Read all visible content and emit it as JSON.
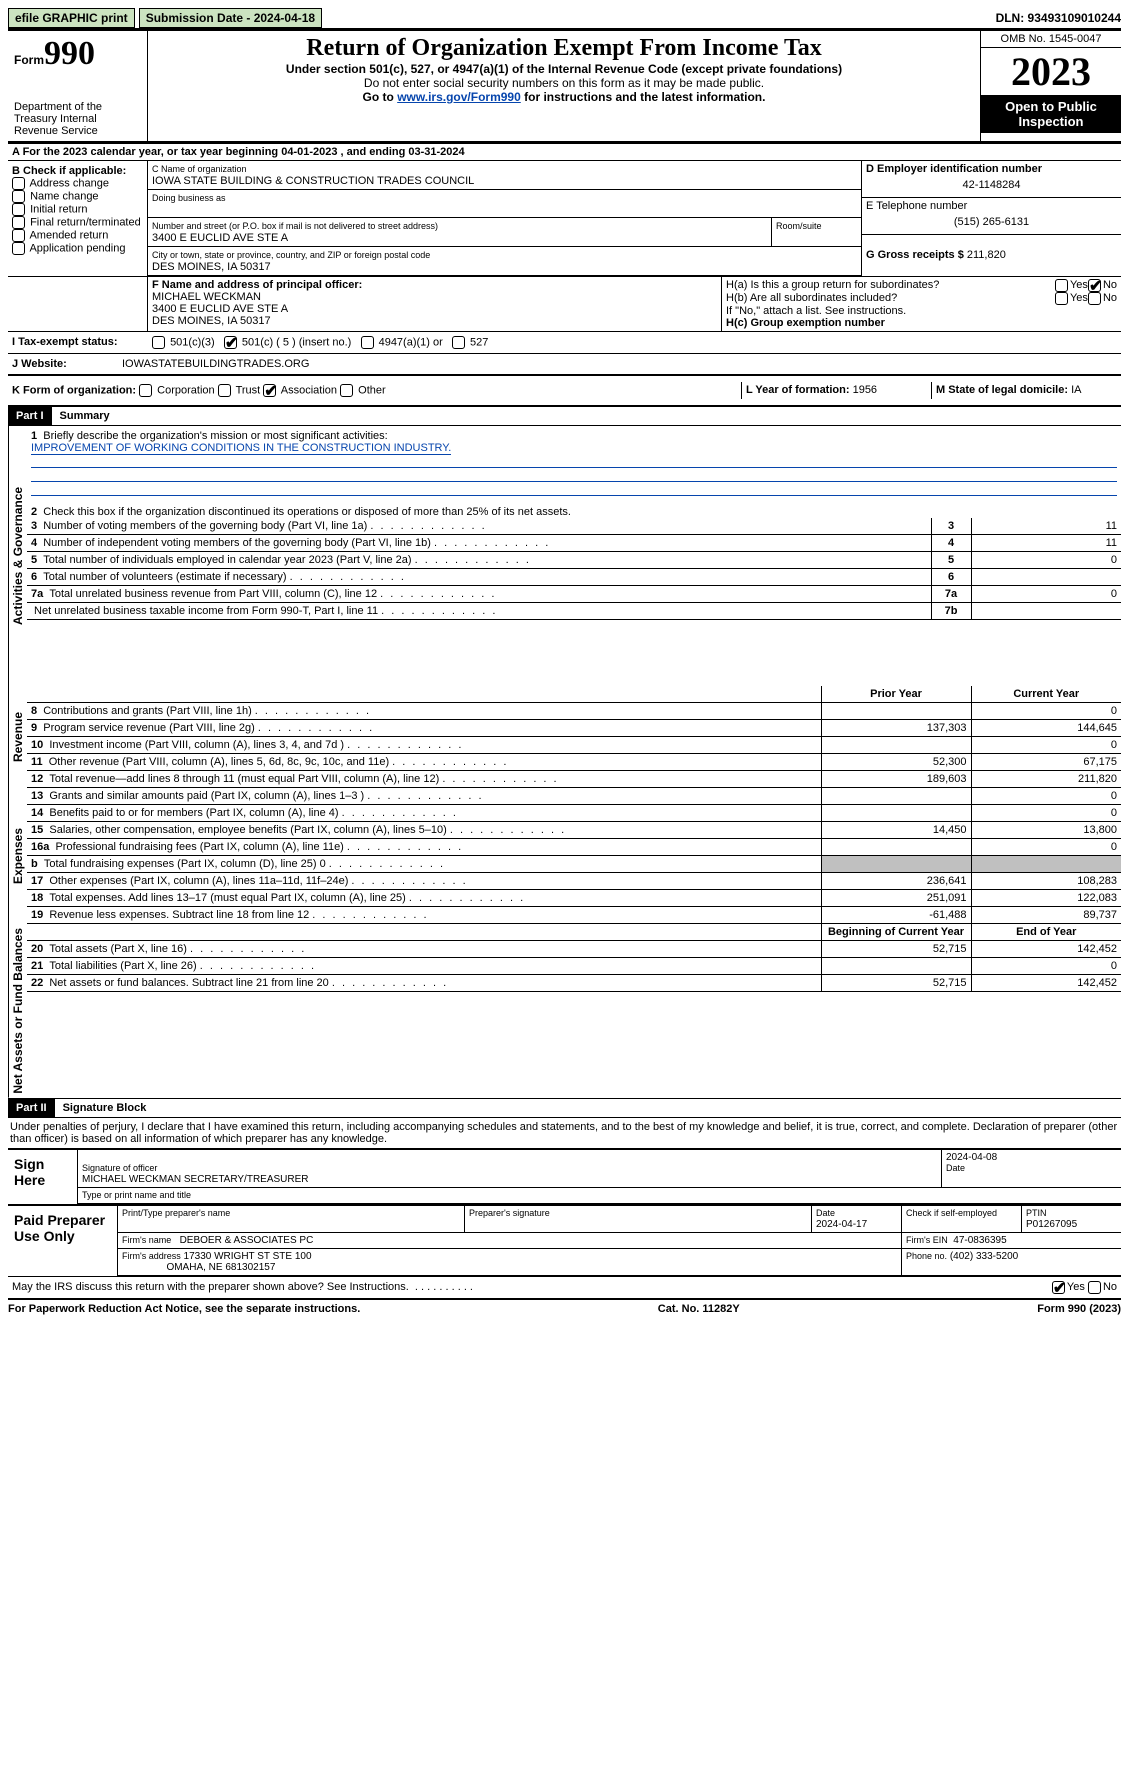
{
  "topbar": {
    "efile": "efile GRAPHIC print",
    "submission_label": "Submission Date - 2024-04-18",
    "dln": "DLN: 93493109010244"
  },
  "header": {
    "form_prefix": "Form",
    "form_no": "990",
    "title": "Return of Organization Exempt From Income Tax",
    "subtitle1": "Under section 501(c), 527, or 4947(a)(1) of the Internal Revenue Code (except private foundations)",
    "subtitle2": "Do not enter social security numbers on this form as it may be made public.",
    "subtitle3_pre": "Go to ",
    "subtitle3_link": "www.irs.gov/Form990",
    "subtitle3_post": " for instructions and the latest information.",
    "dept": "Department of the Treasury\nInternal Revenue Service",
    "omb": "OMB No. 1545-0047",
    "year": "2023",
    "open": "Open to Public Inspection"
  },
  "period": {
    "label_a": "A For the 2023 calendar year, or tax year beginning ",
    "begin": "04-01-2023",
    "mid": " , and ending ",
    "end": "03-31-2024"
  },
  "boxB": {
    "label": "B Check if applicable:",
    "items": [
      "Address change",
      "Name change",
      "Initial return",
      "Final return/terminated",
      "Amended return",
      "Application pending"
    ]
  },
  "boxC": {
    "name_label": "C Name of organization",
    "name": "IOWA STATE BUILDING & CONSTRUCTION TRADES COUNCIL",
    "dba_label": "Doing business as",
    "addr_label": "Number and street (or P.O. box if mail is not delivered to street address)",
    "room_label": "Room/suite",
    "addr": "3400 E EUCLID AVE STE A",
    "city_label": "City or town, state or province, country, and ZIP or foreign postal code",
    "city": "DES MOINES, IA  50317"
  },
  "boxD": {
    "label": "D Employer identification number",
    "value": "42-1148284"
  },
  "boxE": {
    "label": "E Telephone number",
    "value": "(515) 265-6131"
  },
  "boxG": {
    "label": "G Gross receipts $",
    "value": "211,820"
  },
  "boxF": {
    "label": "F  Name and address of principal officer:",
    "name": "MICHAEL WECKMAN",
    "addr1": "3400 E EUCLID AVE STE A",
    "addr2": "DES MOINES, IA  50317"
  },
  "boxH": {
    "a_label": "H(a)  Is this a group return for subordinates?",
    "b_label": "H(b)  Are all subordinates included?",
    "b_note": "If \"No,\" attach a list. See instructions.",
    "c_label": "H(c)  Group exemption number ",
    "yes": "Yes",
    "no": "No"
  },
  "boxI": {
    "label": "I  Tax-exempt status:",
    "opts": [
      "501(c)(3)",
      "501(c) ( 5 ) (insert no.)",
      "4947(a)(1) or",
      "527"
    ]
  },
  "boxJ": {
    "label": "J  Website:",
    "value": "IOWASTATEBUILDINGTRADES.ORG"
  },
  "boxK": {
    "label": "K Form of organization:",
    "opts": [
      "Corporation",
      "Trust",
      "Association",
      "Other"
    ]
  },
  "boxL": {
    "label": "L Year of formation:",
    "value": "1956"
  },
  "boxM": {
    "label": "M State of legal domicile:",
    "value": "IA"
  },
  "part1": {
    "title_num": "Part I",
    "title": "Summary",
    "line1_label": "Briefly describe the organization's mission or most significant activities:",
    "line1_value": "IMPROVEMENT OF WORKING CONDITIONS IN THE CONSTRUCTION INDUSTRY.",
    "line2": "Check this box      if the organization discontinued its operations or disposed of more than 25% of its net assets.",
    "tabs": {
      "gov": "Activities & Governance",
      "rev": "Revenue",
      "exp": "Expenses",
      "net": "Net Assets or Fund Balances"
    },
    "rows_gov": [
      {
        "n": "3",
        "label": "Number of voting members of the governing body (Part VI, line 1a)",
        "col": "3",
        "val": "11"
      },
      {
        "n": "4",
        "label": "Number of independent voting members of the governing body (Part VI, line 1b)",
        "col": "4",
        "val": "11"
      },
      {
        "n": "5",
        "label": "Total number of individuals employed in calendar year 2023 (Part V, line 2a)",
        "col": "5",
        "val": "0"
      },
      {
        "n": "6",
        "label": "Total number of volunteers (estimate if necessary)",
        "col": "6",
        "val": ""
      },
      {
        "n": "7a",
        "label": "Total unrelated business revenue from Part VIII, column (C), line 12",
        "col": "7a",
        "val": "0"
      },
      {
        "n": "",
        "label": "Net unrelated business taxable income from Form 990-T, Part I, line 11",
        "col": "7b",
        "val": ""
      }
    ],
    "hdr_prior": "Prior Year",
    "hdr_curr": "Current Year",
    "rows_rev": [
      {
        "n": "8",
        "label": "Contributions and grants (Part VIII, line 1h)",
        "p": "",
        "c": "0"
      },
      {
        "n": "9",
        "label": "Program service revenue (Part VIII, line 2g)",
        "p": "137,303",
        "c": "144,645"
      },
      {
        "n": "10",
        "label": "Investment income (Part VIII, column (A), lines 3, 4, and 7d )",
        "p": "",
        "c": "0"
      },
      {
        "n": "11",
        "label": "Other revenue (Part VIII, column (A), lines 5, 6d, 8c, 9c, 10c, and 11e)",
        "p": "52,300",
        "c": "67,175"
      },
      {
        "n": "12",
        "label": "Total revenue—add lines 8 through 11 (must equal Part VIII, column (A), line 12)",
        "p": "189,603",
        "c": "211,820"
      }
    ],
    "rows_exp": [
      {
        "n": "13",
        "label": "Grants and similar amounts paid (Part IX, column (A), lines 1–3 )",
        "p": "",
        "c": "0"
      },
      {
        "n": "14",
        "label": "Benefits paid to or for members (Part IX, column (A), line 4)",
        "p": "",
        "c": "0"
      },
      {
        "n": "15",
        "label": "Salaries, other compensation, employee benefits (Part IX, column (A), lines 5–10)",
        "p": "14,450",
        "c": "13,800"
      },
      {
        "n": "16a",
        "label": "Professional fundraising fees (Part IX, column (A), line 11e)",
        "p": "",
        "c": "0"
      },
      {
        "n": "b",
        "label": "Total fundraising expenses (Part IX, column (D), line 25) 0",
        "p": "grey",
        "c": "grey"
      },
      {
        "n": "17",
        "label": "Other expenses (Part IX, column (A), lines 11a–11d, 11f–24e)",
        "p": "236,641",
        "c": "108,283"
      },
      {
        "n": "18",
        "label": "Total expenses. Add lines 13–17 (must equal Part IX, column (A), line 25)",
        "p": "251,091",
        "c": "122,083"
      },
      {
        "n": "19",
        "label": "Revenue less expenses. Subtract line 18 from line 12",
        "p": "-61,488",
        "c": "89,737"
      }
    ],
    "hdr_begin": "Beginning of Current Year",
    "hdr_end": "End of Year",
    "rows_net": [
      {
        "n": "20",
        "label": "Total assets (Part X, line 16)",
        "p": "52,715",
        "c": "142,452"
      },
      {
        "n": "21",
        "label": "Total liabilities (Part X, line 26)",
        "p": "",
        "c": "0"
      },
      {
        "n": "22",
        "label": "Net assets or fund balances. Subtract line 21 from line 20",
        "p": "52,715",
        "c": "142,452"
      }
    ]
  },
  "part2": {
    "title_num": "Part II",
    "title": "Signature Block",
    "penalty": "Under penalties of perjury, I declare that I have examined this return, including accompanying schedules and statements, and to the best of my knowledge and belief, it is true, correct, and complete. Declaration of preparer (other than officer) is based on all information of which preparer has any knowledge."
  },
  "sign": {
    "here": "Sign Here",
    "sig_officer_label": "Signature of officer",
    "officer": "MICHAEL WECKMAN  SECRETARY/TREASURER",
    "type_label": "Type or print name and title",
    "date_label": "Date",
    "date": "2024-04-08"
  },
  "paid": {
    "label": "Paid Preparer Use Only",
    "print_label": "Print/Type preparer's name",
    "sig_label": "Preparer's signature",
    "date_label": "Date",
    "date": "2024-04-17",
    "check_label": "Check        if self-employed",
    "ptin_label": "PTIN",
    "ptin": "P01267095",
    "firm_name_label": "Firm's name",
    "firm_name": "DEBOER & ASSOCIATES PC",
    "firm_ein_label": "Firm's EIN",
    "firm_ein": "47-0836395",
    "firm_addr_label": "Firm's address",
    "firm_addr1": "17330 WRIGHT ST STE 100",
    "firm_addr2": "OMAHA, NE  681302157",
    "phone_label": "Phone no.",
    "phone": "(402) 333-5200"
  },
  "discuss": {
    "label": "May the IRS discuss this return with the preparer shown above? See Instructions.",
    "yes": "Yes",
    "no": "No"
  },
  "footer": {
    "pra": "For Paperwork Reduction Act Notice, see the separate instructions.",
    "cat": "Cat. No. 11282Y",
    "form": "Form 990 (2023)"
  }
}
